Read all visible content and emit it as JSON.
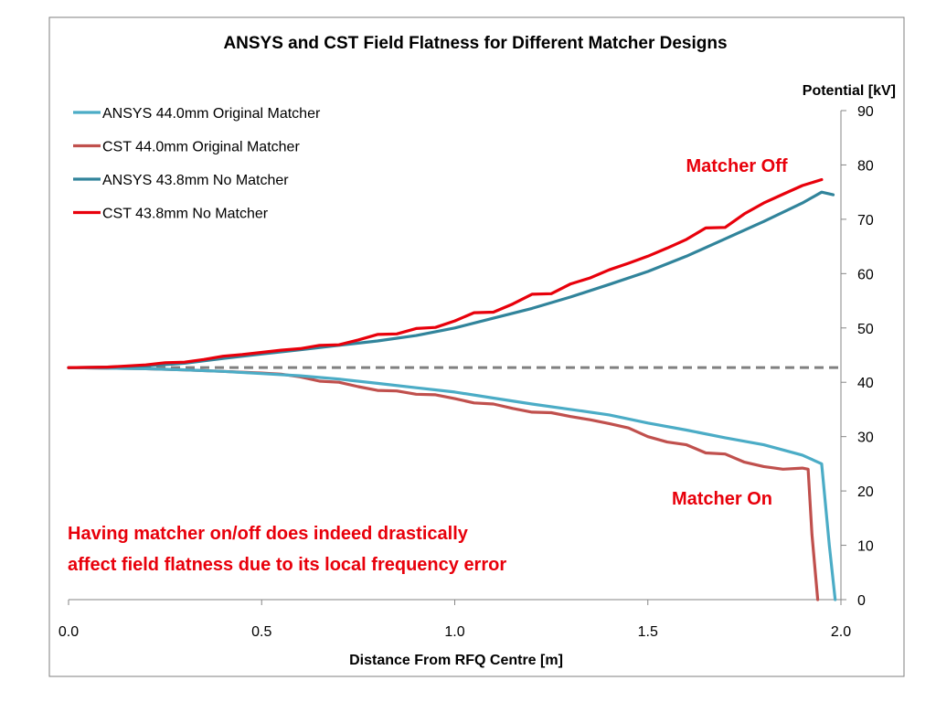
{
  "chart_data": {
    "type": "line",
    "title": "ANSYS and CST Field Flatness for Different Matcher Designs",
    "xlabel": "Distance From RFQ Centre [m]",
    "ylabel": "Potential [kV]",
    "xlim": [
      0.0,
      2.0
    ],
    "ylim": [
      0,
      90
    ],
    "x_ticks": [
      "0.0",
      "0.5",
      "1.0",
      "1.5",
      "2.0"
    ],
    "y_ticks": [
      "0",
      "10",
      "20",
      "30",
      "40",
      "50",
      "60",
      "70",
      "80",
      "90"
    ],
    "y_axis_side": "right",
    "grid": false,
    "legend_position": "top-left",
    "reference_line": {
      "y": 42.7,
      "style": "dashed",
      "color": "#808080"
    },
    "series": [
      {
        "name": "ANSYS 44.0mm Original Matcher",
        "color": "#4bacc6",
        "x": [
          0.0,
          0.1,
          0.2,
          0.3,
          0.4,
          0.5,
          0.6,
          0.7,
          0.8,
          0.9,
          1.0,
          1.1,
          1.2,
          1.3,
          1.4,
          1.5,
          1.6,
          1.7,
          1.8,
          1.9,
          1.95,
          1.97,
          1.985
        ],
        "y": [
          42.7,
          42.6,
          42.5,
          42.3,
          42.0,
          41.6,
          41.2,
          40.6,
          39.8,
          39.0,
          38.2,
          37.1,
          36.0,
          35.0,
          34.0,
          32.5,
          31.2,
          29.8,
          28.5,
          26.6,
          25.0,
          10.0,
          0.0
        ]
      },
      {
        "name": "CST 44.0mm Original Matcher",
        "color": "#c0504d",
        "x": [
          0.0,
          0.1,
          0.2,
          0.3,
          0.4,
          0.5,
          0.55,
          0.6,
          0.65,
          0.7,
          0.75,
          0.8,
          0.85,
          0.9,
          0.95,
          1.0,
          1.05,
          1.1,
          1.15,
          1.2,
          1.25,
          1.3,
          1.35,
          1.4,
          1.45,
          1.5,
          1.55,
          1.6,
          1.65,
          1.7,
          1.75,
          1.8,
          1.85,
          1.9,
          1.915,
          1.925,
          1.94
        ],
        "y": [
          42.7,
          42.6,
          42.5,
          42.3,
          42.0,
          41.7,
          41.5,
          41.0,
          40.2,
          40.0,
          39.2,
          38.5,
          38.4,
          37.8,
          37.7,
          37.0,
          36.2,
          36.0,
          35.2,
          34.5,
          34.4,
          33.7,
          33.1,
          32.4,
          31.6,
          30.0,
          29.0,
          28.5,
          27.0,
          26.8,
          25.3,
          24.5,
          24.0,
          24.2,
          24.0,
          12.0,
          0.0
        ]
      },
      {
        "name": "ANSYS 43.8mm No Matcher",
        "color": "#31849b",
        "x": [
          0.0,
          0.1,
          0.2,
          0.3,
          0.4,
          0.5,
          0.6,
          0.7,
          0.8,
          0.9,
          1.0,
          1.1,
          1.2,
          1.3,
          1.4,
          1.5,
          1.6,
          1.7,
          1.8,
          1.9,
          1.95,
          1.98
        ],
        "y": [
          42.7,
          42.8,
          43.0,
          43.5,
          44.4,
          45.2,
          46.0,
          46.8,
          47.6,
          48.6,
          50.0,
          51.8,
          53.6,
          55.7,
          58.0,
          60.4,
          63.2,
          66.4,
          69.6,
          73.0,
          75.0,
          74.5
        ]
      },
      {
        "name": "CST 43.8mm No Matcher",
        "color": "#e8000b",
        "x": [
          0.0,
          0.1,
          0.2,
          0.25,
          0.3,
          0.35,
          0.4,
          0.45,
          0.5,
          0.55,
          0.6,
          0.65,
          0.7,
          0.75,
          0.8,
          0.85,
          0.9,
          0.95,
          1.0,
          1.05,
          1.1,
          1.15,
          1.2,
          1.25,
          1.3,
          1.35,
          1.4,
          1.45,
          1.5,
          1.55,
          1.6,
          1.65,
          1.7,
          1.75,
          1.8,
          1.85,
          1.9,
          1.95
        ],
        "y": [
          42.7,
          42.8,
          43.2,
          43.6,
          43.7,
          44.2,
          44.8,
          45.1,
          45.5,
          45.9,
          46.2,
          46.8,
          46.9,
          47.8,
          48.8,
          48.9,
          49.9,
          50.1,
          51.3,
          52.8,
          52.9,
          54.4,
          56.2,
          56.3,
          58.1,
          59.2,
          60.7,
          61.9,
          63.2,
          64.7,
          66.3,
          68.4,
          68.5,
          71.0,
          73.0,
          74.6,
          76.2,
          77.3
        ]
      }
    ],
    "annotations": [
      {
        "text": "Matcher Off",
        "color": "#e8000b"
      },
      {
        "text": "Matcher On",
        "color": "#e8000b"
      }
    ],
    "note_lines": [
      "Having matcher on/off does indeed drastically",
      "affect field flatness due to its local frequency error"
    ]
  }
}
